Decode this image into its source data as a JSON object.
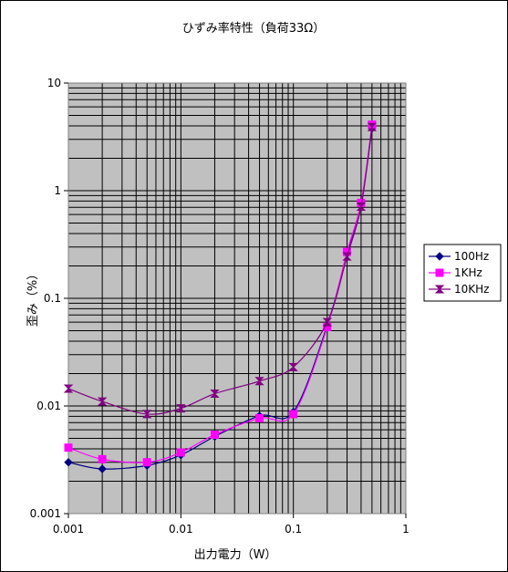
{
  "chart_data": {
    "type": "line",
    "title": "ひずみ率特性（負荷33Ω）",
    "xlabel": "出力電力（W）",
    "ylabel": "歪み（%）",
    "xscale": "log",
    "yscale": "log",
    "xlim": [
      0.001,
      1
    ],
    "ylim": [
      0.001,
      10
    ],
    "xticks": [
      "0.001",
      "0.01",
      "0.1",
      "1"
    ],
    "yticks": [
      "0.001",
      "0.01",
      "0.1",
      "1",
      "10"
    ],
    "grid": true,
    "legend_position": "right",
    "series": [
      {
        "name": "100Hz",
        "color": "#000080",
        "marker": "diamond",
        "x": [
          0.001,
          0.002,
          0.005,
          0.01,
          0.02,
          0.05,
          0.1,
          0.2,
          0.3,
          0.4,
          0.5
        ],
        "y": [
          0.003,
          0.0026,
          0.0028,
          0.0035,
          0.0052,
          0.0081,
          0.0088,
          0.056,
          0.26,
          0.76,
          3.8
        ]
      },
      {
        "name": "1KHz",
        "color": "#ff00ff",
        "marker": "square",
        "x": [
          0.001,
          0.002,
          0.005,
          0.01,
          0.02,
          0.05,
          0.1,
          0.2,
          0.3,
          0.4,
          0.5
        ],
        "y": [
          0.0041,
          0.0032,
          0.003,
          0.0037,
          0.0054,
          0.0077,
          0.0084,
          0.054,
          0.27,
          0.77,
          4.1
        ]
      },
      {
        "name": "10KHz",
        "color": "#800080",
        "marker": "hourglass",
        "x": [
          0.001,
          0.002,
          0.005,
          0.01,
          0.02,
          0.05,
          0.1,
          0.2,
          0.3,
          0.4,
          0.5
        ],
        "y": [
          0.0145,
          0.011,
          0.0084,
          0.0095,
          0.013,
          0.017,
          0.023,
          0.06,
          0.245,
          0.71,
          3.9
        ]
      }
    ]
  }
}
